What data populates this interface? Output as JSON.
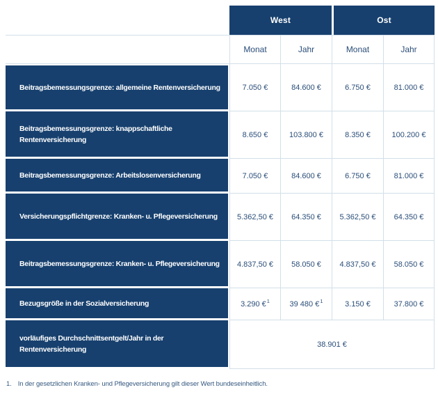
{
  "colors": {
    "header_navy": "#17406e",
    "grid_border": "#d2dfe9",
    "value_text": "#2b4e79",
    "footnote_text": "#35587f"
  },
  "table": {
    "column_groups": {
      "west": "West",
      "ost": "Ost"
    },
    "sub_headers": [
      "Monat",
      "Jahr",
      "Monat",
      "Jahr"
    ],
    "rows": [
      {
        "label": "Beitragsbemessungsgrenze: allgemeine Rentenversicherung",
        "values": [
          "7.050 €",
          "84.600 €",
          "6.750 €",
          "81.000 €"
        ]
      },
      {
        "label": "Beitragsbemessungsgrenze: knappschaftliche Rentenversicherung",
        "values": [
          "8.650 €",
          "103.800 €",
          "8.350 €",
          "100.200 €"
        ]
      },
      {
        "label": "Beitragsbemessungsgrenze: Arbeitslosenversicherung",
        "values": [
          "7.050 €",
          "84.600 €",
          "6.750 €",
          "81.000 €"
        ]
      },
      {
        "label": "Versicherungspflichtgrenze: Kranken- u. Pflegeversicherung",
        "values": [
          "5.362,50 €",
          "64.350 €",
          "5.362,50 €",
          "64.350 €"
        ]
      },
      {
        "label": "Beitragsbemessungsgrenze: Kranken- u. Pflegeversicherung",
        "values": [
          "4.837,50 €",
          "58.050 €",
          "4.837,50 €",
          "58.050 €"
        ]
      },
      {
        "label": "Bezugsgröße in der Sozialversicherung",
        "values": [
          "3.290 €",
          "39 480 €",
          "3.150 €",
          "37.800 €"
        ],
        "sup": [
          "1",
          "1"
        ]
      },
      {
        "label": "vorläufiges Durchschnittsentgelt/Jahr in der Rentenversicherung",
        "span_value": "38.901 €"
      }
    ],
    "footnote": {
      "number": "1.",
      "text": "In der gesetzlichen Kranken- und Pflegeversicherung gilt dieser Wert bundeseinheitlich."
    }
  }
}
